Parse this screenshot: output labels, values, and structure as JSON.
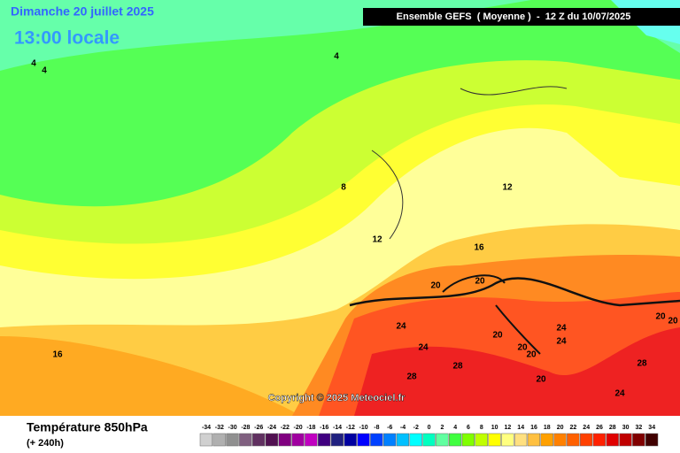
{
  "header": {
    "date": "Dimanche 20 juillet 2025",
    "time": "13:00 locale",
    "run": "Ensemble GEFS  ( Moyenne )  -  12 Z du 10/07/2025"
  },
  "map": {
    "contour_labels": [
      4,
      4,
      4,
      8,
      12,
      12,
      16,
      20,
      20,
      24,
      24,
      24,
      20,
      20,
      20,
      20,
      24,
      28,
      28,
      24,
      28,
      16,
      20,
      20
    ],
    "copyright": "Copyright © 2025 Meteociel.fr"
  },
  "legend": {
    "title": "Température 850hPa",
    "subtitle": "(+ 240h)",
    "values": [
      -34,
      -32,
      -30,
      -28,
      -26,
      -24,
      -22,
      -20,
      -18,
      -16,
      -14,
      -12,
      -10,
      -8,
      -6,
      -4,
      -2,
      0,
      2,
      4,
      6,
      8,
      10,
      12,
      14,
      16,
      18,
      20,
      22,
      24,
      26,
      28,
      30,
      32,
      34
    ],
    "colors": [
      "#d0d0d0",
      "#b0b0b0",
      "#909090",
      "#806080",
      "#603060",
      "#501050",
      "#800080",
      "#a000a0",
      "#c000c0",
      "#400080",
      "#202080",
      "#0000a0",
      "#0000ff",
      "#0040ff",
      "#0080ff",
      "#00c0ff",
      "#00ffff",
      "#00ffc0",
      "#60ffa0",
      "#40ff40",
      "#80ff00",
      "#c0ff00",
      "#ffff00",
      "#ffff80",
      "#ffe080",
      "#ffc040",
      "#ffa000",
      "#ff8000",
      "#ff6000",
      "#ff4000",
      "#ff2000",
      "#e00000",
      "#c00000",
      "#800000",
      "#400000"
    ]
  }
}
